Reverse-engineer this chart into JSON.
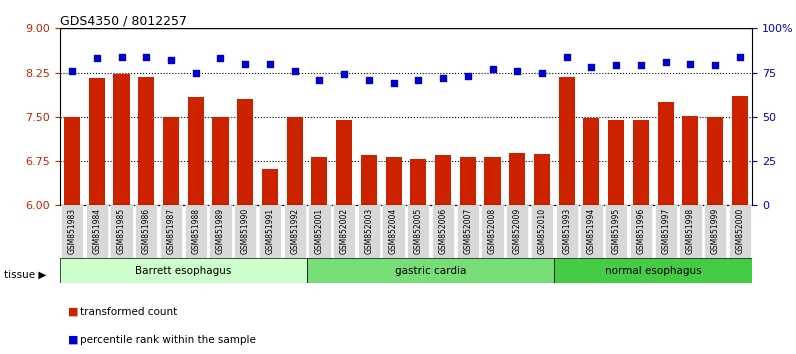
{
  "title": "GDS4350 / 8012257",
  "samples": [
    "GSM851983",
    "GSM851984",
    "GSM851985",
    "GSM851986",
    "GSM851987",
    "GSM851988",
    "GSM851989",
    "GSM851990",
    "GSM851991",
    "GSM851992",
    "GSM852001",
    "GSM852002",
    "GSM852003",
    "GSM852004",
    "GSM852005",
    "GSM852006",
    "GSM852007",
    "GSM852008",
    "GSM852009",
    "GSM852010",
    "GSM851993",
    "GSM851994",
    "GSM851995",
    "GSM851996",
    "GSM851997",
    "GSM851998",
    "GSM851999",
    "GSM852000"
  ],
  "bar_values": [
    7.5,
    8.15,
    8.22,
    8.17,
    7.5,
    7.83,
    7.5,
    7.8,
    6.62,
    7.5,
    6.82,
    7.45,
    6.85,
    6.82,
    6.78,
    6.85,
    6.82,
    6.82,
    6.88,
    6.87,
    8.18,
    7.48,
    7.45,
    7.45,
    7.75,
    7.52,
    7.5,
    7.85
  ],
  "blue_values": [
    76,
    83,
    84,
    84,
    82,
    75,
    83,
    80,
    80,
    76,
    71,
    74,
    71,
    69,
    71,
    72,
    73,
    77,
    76,
    75,
    84,
    78,
    79,
    79,
    81,
    80,
    79,
    84
  ],
  "groups": [
    {
      "label": "Barrett esophagus",
      "start": 0,
      "end": 10,
      "color": "#ccffcc"
    },
    {
      "label": "gastric cardia",
      "start": 10,
      "end": 20,
      "color": "#77dd77"
    },
    {
      "label": "normal esophagus",
      "start": 20,
      "end": 28,
      "color": "#44cc44"
    }
  ],
  "bar_color": "#cc2200",
  "blue_color": "#0000cc",
  "ylim_left": [
    6.0,
    9.0
  ],
  "ylim_right": [
    0,
    100
  ],
  "yticks_left": [
    6.0,
    6.75,
    7.5,
    8.25,
    9.0
  ],
  "yticks_right": [
    0,
    25,
    50,
    75,
    100
  ],
  "hlines": [
    6.75,
    7.5,
    8.25
  ],
  "legend_items": [
    {
      "label": "transformed count",
      "color": "#cc2200"
    },
    {
      "label": "percentile rank within the sample",
      "color": "#0000cc"
    }
  ]
}
